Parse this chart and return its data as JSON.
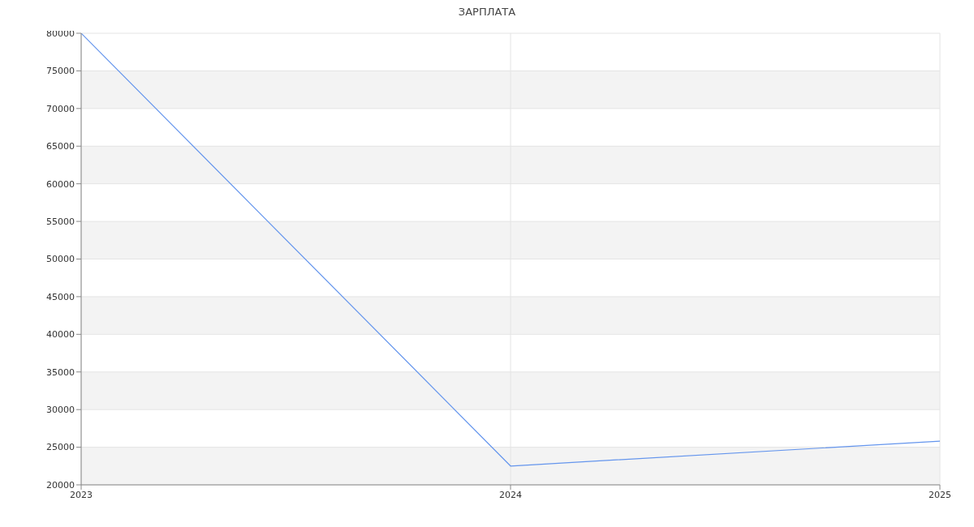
{
  "chart_data": {
    "type": "line",
    "title": "ЗАРПЛАТА",
    "x": [
      2023,
      2024,
      2025
    ],
    "series": [
      {
        "color": "#6495ed",
        "values": [
          80000,
          22500,
          25800
        ]
      }
    ],
    "xlim": [
      2023,
      2025
    ],
    "xticks": [
      2023,
      2024,
      2025
    ],
    "ylim": [
      20000,
      80000
    ],
    "yticks": [
      20000,
      25000,
      30000,
      35000,
      40000,
      45000,
      50000,
      55000,
      60000,
      65000,
      70000,
      75000,
      80000
    ],
    "grid": true,
    "marker": "none",
    "line_style": "solid"
  }
}
